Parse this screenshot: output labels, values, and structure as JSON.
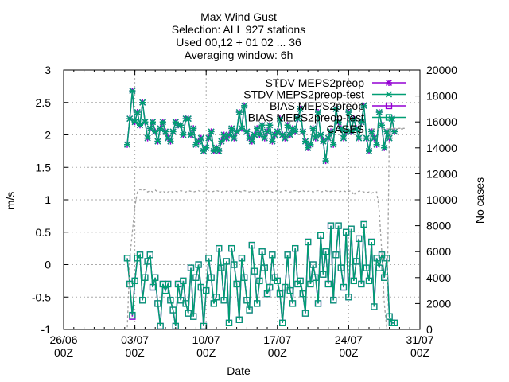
{
  "title_lines": [
    "Max Wind Gust",
    "Selection: ALL     927 stations",
    "Used 00,12 + 01 02 ... 36",
    "Averaging window:  6h"
  ],
  "chart_data": {
    "type": "line",
    "xlabel": "Date",
    "ylabel": "m/s",
    "y2label": "No cases",
    "xlim": [
      "2021-06-26T00:00",
      "2021-07-31T00:00"
    ],
    "ylim": [
      -1,
      3
    ],
    "y2lim": [
      0,
      20000
    ],
    "xticks": [
      {
        "date": "2021-06-26T00:00",
        "line1": "26/06",
        "line2": "00Z"
      },
      {
        "date": "2021-07-03T00:00",
        "line1": "03/07",
        "line2": "00Z"
      },
      {
        "date": "2021-07-10T00:00",
        "line1": "10/07",
        "line2": "00Z"
      },
      {
        "date": "2021-07-17T00:00",
        "line1": "17/07",
        "line2": "00Z"
      },
      {
        "date": "2021-07-24T00:00",
        "line1": "24/07",
        "line2": "00Z"
      },
      {
        "date": "2021-07-31T00:00",
        "line1": "31/07",
        "line2": "00Z"
      }
    ],
    "yticks": [
      "-1",
      "-0.5",
      "0",
      "0.5",
      "1",
      "1.5",
      "2",
      "2.5",
      "3"
    ],
    "y2ticks": [
      "0",
      "2000",
      "4000",
      "6000",
      "8000",
      "10000",
      "12000",
      "14000",
      "16000",
      "18000",
      "20000"
    ],
    "legend_position": "top-right",
    "series": [
      {
        "name": "STDV MEPS2preop",
        "color": "#9400d3",
        "marker": "star",
        "axis": "y",
        "start": "2021-07-02T06:00",
        "step_hours": 6,
        "values": [
          1.85,
          2.25,
          2.68,
          2.2,
          2.35,
          2.15,
          2.5,
          2.2,
          1.95,
          2.1,
          2.2,
          2.05,
          1.9,
          2.1,
          2.2,
          2.05,
          1.95,
          1.9,
          2.05,
          2.2,
          2.15,
          2.15,
          2.0,
          2.25,
          2.25,
          2.0,
          2.1,
          1.85,
          1.9,
          1.95,
          1.75,
          1.8,
          1.95,
          2.05,
          1.75,
          1.8,
          1.75,
          1.9,
          2.0,
          1.95,
          2.0,
          2.1,
          1.95,
          2.05,
          2.35,
          2.1,
          2.45,
          2.05,
          1.95,
          1.9,
          2.0,
          2.1,
          2.0,
          2.15,
          1.95,
          2.05,
          2.15,
          1.9,
          2.0,
          2.05,
          2.25,
          2.0,
          1.95,
          2.15,
          2.0,
          2.1,
          2.05,
          2.25,
          2.4,
          2.05,
          1.9,
          1.8,
          1.85,
          2.1,
          1.95,
          2.35,
          2.0,
          1.9,
          1.6,
          1.95,
          2.05,
          1.85,
          2.4,
          2.2,
          2.1,
          1.95,
          2.05,
          2.35,
          2.05,
          2.25,
          2.1,
          1.95,
          2.2,
          2.45,
          1.95,
          1.75,
          2.05,
          1.95,
          1.85,
          2.35,
          2.15,
          1.8,
          2.05,
          1.95,
          2.25,
          2.05
        ]
      },
      {
        "name": "STDV MEPS2preop-test",
        "color": "#009e73",
        "marker": "x-star",
        "axis": "y",
        "start": "2021-07-02T06:00",
        "step_hours": 6,
        "values": [
          1.85,
          2.25,
          2.68,
          2.2,
          2.35,
          2.15,
          2.5,
          2.2,
          1.95,
          2.1,
          2.2,
          2.05,
          1.9,
          2.1,
          2.2,
          2.05,
          1.95,
          1.9,
          2.05,
          2.2,
          2.15,
          2.15,
          2.0,
          2.25,
          2.25,
          2.0,
          2.1,
          1.85,
          1.9,
          1.95,
          1.75,
          1.8,
          1.95,
          2.05,
          1.75,
          1.8,
          1.75,
          1.9,
          2.0,
          1.95,
          2.0,
          2.1,
          1.95,
          2.05,
          2.35,
          2.1,
          2.45,
          2.05,
          1.95,
          1.9,
          2.0,
          2.1,
          2.0,
          2.15,
          1.95,
          2.05,
          2.15,
          1.9,
          2.0,
          2.05,
          2.25,
          2.0,
          1.95,
          2.15,
          2.0,
          2.1,
          2.05,
          2.25,
          2.4,
          2.05,
          1.9,
          1.8,
          1.85,
          2.1,
          1.95,
          2.35,
          2.0,
          1.9,
          1.6,
          1.95,
          2.05,
          1.85,
          2.4,
          2.2,
          2.1,
          1.95,
          2.05,
          2.35,
          2.05,
          2.25,
          2.1,
          1.95,
          2.2,
          2.45,
          1.95,
          1.75,
          2.05,
          1.95,
          1.85,
          2.35,
          2.15,
          1.8,
          2.05,
          1.95,
          2.25,
          2.05
        ]
      },
      {
        "name": "BIAS MEPS2preop",
        "color": "#9400d3",
        "marker": "square",
        "axis": "y",
        "start": "2021-07-02T06:00",
        "step_hours": 6,
        "values": [
          0.1,
          -0.3,
          -0.8,
          -0.25,
          0.1,
          0.15,
          -0.55,
          -0.2,
          0.05,
          0.15,
          -0.35,
          -0.2,
          -0.6,
          -0.95,
          -0.3,
          -0.4,
          -0.3,
          -0.55,
          -0.7,
          -0.95,
          -0.3,
          -0.55,
          -0.25,
          -0.6,
          -0.75,
          -0.05,
          -0.8,
          -0.2,
          0.0,
          -0.35,
          -0.95,
          -0.4,
          0.1,
          -0.2,
          -0.6,
          -0.5,
          0.25,
          -0.05,
          -0.55,
          0.05,
          -0.9,
          0.25,
          0.0,
          -0.3,
          -0.85,
          0.1,
          -0.2,
          -0.55,
          -0.7,
          0.3,
          -0.1,
          -0.6,
          -0.25,
          0.2,
          -0.05,
          -0.45,
          -0.35,
          0.15,
          -0.2,
          -0.25,
          -0.45,
          -0.9,
          -0.35,
          0.15,
          -0.4,
          -0.6,
          0.25,
          -0.3,
          -0.25,
          -0.45,
          -0.75,
          0.35,
          -0.3,
          0.0,
          -0.2,
          -0.6,
          0.45,
          -0.15,
          0.2,
          -0.3,
          0.6,
          -0.55,
          0.15,
          0.6,
          -0.05,
          -0.35,
          0.5,
          -0.5,
          0.55,
          -0.25,
          0.05,
          0.4,
          -0.3,
          0.62,
          -0.05,
          -0.25,
          0.35,
          -0.65,
          0.1,
          -0.05,
          0.15,
          -0.2,
          0.1,
          -0.8,
          -0.9,
          -0.9
        ]
      },
      {
        "name": "BIAS MEPS2preop-test",
        "color": "#009e73",
        "marker": "square",
        "axis": "y",
        "start": "2021-07-02T06:00",
        "step_hours": 6,
        "values": [
          0.1,
          -0.3,
          -0.78,
          -0.25,
          0.1,
          0.15,
          -0.55,
          -0.2,
          0.05,
          0.15,
          -0.35,
          -0.2,
          -0.6,
          -0.95,
          -0.3,
          -0.4,
          -0.3,
          -0.55,
          -0.7,
          -0.95,
          -0.3,
          -0.55,
          -0.25,
          -0.6,
          -0.75,
          -0.05,
          -0.8,
          -0.2,
          0.0,
          -0.35,
          -0.95,
          -0.4,
          0.1,
          -0.2,
          -0.6,
          -0.5,
          0.25,
          -0.05,
          -0.55,
          0.05,
          -0.9,
          0.25,
          0.0,
          -0.3,
          -0.85,
          0.1,
          -0.2,
          -0.55,
          -0.7,
          0.3,
          -0.1,
          -0.6,
          -0.25,
          0.2,
          -0.05,
          -0.45,
          -0.35,
          0.15,
          -0.2,
          -0.25,
          -0.45,
          -0.9,
          -0.35,
          0.15,
          -0.4,
          -0.6,
          0.25,
          -0.3,
          -0.25,
          -0.45,
          -0.75,
          0.35,
          -0.3,
          0.0,
          -0.2,
          -0.6,
          0.45,
          -0.15,
          0.2,
          -0.3,
          0.6,
          -0.55,
          0.15,
          0.6,
          -0.05,
          -0.35,
          0.5,
          -0.5,
          0.55,
          -0.25,
          0.05,
          0.4,
          -0.3,
          0.62,
          -0.05,
          -0.25,
          0.35,
          -0.65,
          0.1,
          -0.05,
          0.15,
          -0.2,
          0.1,
          -0.8,
          -0.9,
          -0.9
        ]
      },
      {
        "name": "CASES",
        "color": "#a0a0a0",
        "dash": true,
        "axis": "y2",
        "start": "2021-07-02T00:00",
        "step_hours": 6,
        "values": [
          0,
          0,
          5500,
          7500,
          9500,
          10600,
          10800,
          10700,
          10800,
          10600,
          10700,
          10600,
          10750,
          10600,
          10600,
          10700,
          10500,
          10600,
          10700,
          10550,
          10650,
          10600,
          10700,
          10650,
          10600,
          10700,
          10650,
          10600,
          10650,
          10700,
          10600,
          10650,
          10700,
          10650,
          10600,
          10650,
          10700,
          10650,
          10600,
          10700,
          10650,
          10700,
          10650,
          10600,
          10700,
          10650,
          10600,
          10700,
          10650,
          10600,
          10700,
          10650,
          10600,
          10650,
          10700,
          10600,
          10650,
          10700,
          10600,
          10650,
          10700,
          10600,
          10650,
          10700,
          10650,
          10600,
          10650,
          10700,
          10600,
          10650,
          10700,
          10600,
          10650,
          10700,
          10600,
          10650,
          10700,
          10600,
          10650,
          10700,
          10600,
          10650,
          10700,
          10650,
          10600,
          10650,
          10700,
          10600,
          10650,
          10700,
          10350,
          10600,
          10650,
          10700,
          10600,
          10550,
          10600,
          10500,
          10600,
          10600,
          9200,
          6000,
          2000,
          0,
          15500,
          15500,
          15500,
          15500,
          15500,
          15500,
          15500
        ]
      }
    ]
  }
}
